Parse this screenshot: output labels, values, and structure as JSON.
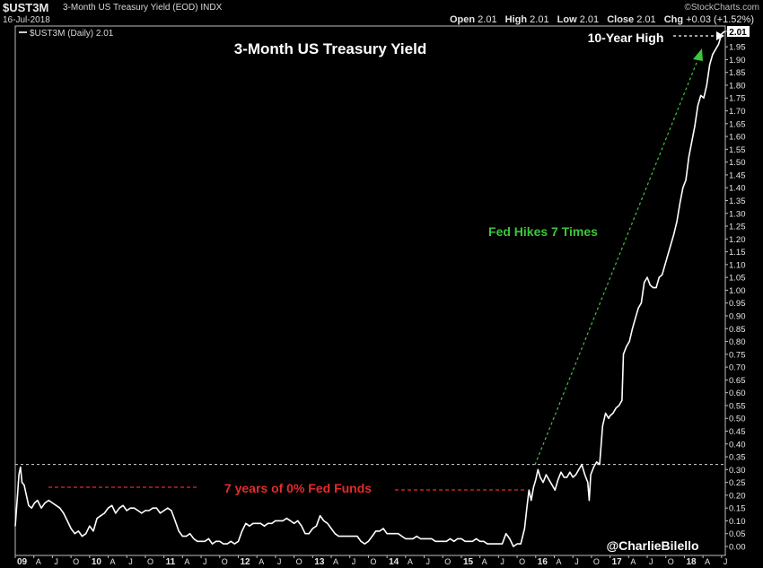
{
  "header": {
    "symbol": "$UST3M",
    "name": "3-Month US Treasury Yield (EOD)  INDX",
    "date": "16-Jul-2018",
    "brand": "©StockCharts.com",
    "ohlc": [
      {
        "key": "Open",
        "value": "2.01"
      },
      {
        "key": "High",
        "value": "2.01"
      },
      {
        "key": "Low",
        "value": "2.01"
      },
      {
        "key": "Close",
        "value": "2.01"
      },
      {
        "key": "Chg",
        "value": "+0.03 (+1.52%)"
      }
    ]
  },
  "legend_text": "$UST3M (Daily) 2.01",
  "colors": {
    "background": "#000000",
    "line": "#ffffff",
    "annotation_red": "#e52b2b",
    "annotation_green": "#3ec43e",
    "grid": "#cfcfcf"
  },
  "chart_data": {
    "type": "line",
    "title": "3-Month US Treasury Yield",
    "xlabel": "",
    "ylabel": "",
    "ylim": [
      0.0,
      2.02
    ],
    "yticks": [
      "2.01",
      "1.95",
      "1.90",
      "1.85",
      "1.80",
      "1.75",
      "1.70",
      "1.65",
      "1.60",
      "1.55",
      "1.50",
      "1.45",
      "1.40",
      "1.35",
      "1.30",
      "1.25",
      "1.20",
      "1.15",
      "1.10",
      "1.05",
      "1.00",
      "0.95",
      "0.90",
      "0.85",
      "0.80",
      "0.75",
      "0.70",
      "0.65",
      "0.60",
      "0.55",
      "0.50",
      "0.45",
      "0.40",
      "0.35",
      "0.30",
      "0.25",
      "0.20",
      "0.15",
      "0.10",
      "0.05",
      "0.00"
    ],
    "xticks": [
      {
        "label": "09",
        "year": 2009.0,
        "major": true
      },
      {
        "label": "A",
        "year": 2009.25,
        "major": false
      },
      {
        "label": "J",
        "year": 2009.5,
        "major": false
      },
      {
        "label": "O",
        "year": 2009.75,
        "major": false
      },
      {
        "label": "10",
        "year": 2010.0,
        "major": true
      },
      {
        "label": "A",
        "year": 2010.25,
        "major": false
      },
      {
        "label": "J",
        "year": 2010.5,
        "major": false
      },
      {
        "label": "O",
        "year": 2010.75,
        "major": false
      },
      {
        "label": "11",
        "year": 2011.0,
        "major": true
      },
      {
        "label": "A",
        "year": 2011.25,
        "major": false
      },
      {
        "label": "J",
        "year": 2011.5,
        "major": false
      },
      {
        "label": "O",
        "year": 2011.75,
        "major": false
      },
      {
        "label": "12",
        "year": 2012.0,
        "major": true
      },
      {
        "label": "A",
        "year": 2012.25,
        "major": false
      },
      {
        "label": "J",
        "year": 2012.5,
        "major": false
      },
      {
        "label": "O",
        "year": 2012.75,
        "major": false
      },
      {
        "label": "13",
        "year": 2013.0,
        "major": true
      },
      {
        "label": "A",
        "year": 2013.25,
        "major": false
      },
      {
        "label": "J",
        "year": 2013.5,
        "major": false
      },
      {
        "label": "O",
        "year": 2013.75,
        "major": false
      },
      {
        "label": "14",
        "year": 2014.0,
        "major": true
      },
      {
        "label": "A",
        "year": 2014.25,
        "major": false
      },
      {
        "label": "J",
        "year": 2014.5,
        "major": false
      },
      {
        "label": "O",
        "year": 2014.75,
        "major": false
      },
      {
        "label": "15",
        "year": 2015.0,
        "major": true
      },
      {
        "label": "A",
        "year": 2015.25,
        "major": false
      },
      {
        "label": "J",
        "year": 2015.5,
        "major": false
      },
      {
        "label": "O",
        "year": 2015.75,
        "major": false
      },
      {
        "label": "16",
        "year": 2016.0,
        "major": true
      },
      {
        "label": "A",
        "year": 2016.25,
        "major": false
      },
      {
        "label": "J",
        "year": 2016.5,
        "major": false
      },
      {
        "label": "O",
        "year": 2016.75,
        "major": false
      },
      {
        "label": "17",
        "year": 2017.0,
        "major": true
      },
      {
        "label": "A",
        "year": 2017.25,
        "major": false
      },
      {
        "label": "J",
        "year": 2017.5,
        "major": false
      },
      {
        "label": "O",
        "year": 2017.75,
        "major": false
      },
      {
        "label": "18",
        "year": 2018.0,
        "major": true
      },
      {
        "label": "A",
        "year": 2018.25,
        "major": false
      },
      {
        "label": "J",
        "year": 2018.5,
        "major": false
      }
    ],
    "xlim": [
      2009.0,
      2018.55
    ],
    "series": [
      {
        "points": [
          [
            2009.0,
            0.08
          ],
          [
            2009.03,
            0.2
          ],
          [
            2009.05,
            0.28
          ],
          [
            2009.07,
            0.31
          ],
          [
            2009.09,
            0.25
          ],
          [
            2009.12,
            0.24
          ],
          [
            2009.15,
            0.2
          ],
          [
            2009.18,
            0.16
          ],
          [
            2009.22,
            0.15
          ],
          [
            2009.26,
            0.17
          ],
          [
            2009.3,
            0.18
          ],
          [
            2009.35,
            0.15
          ],
          [
            2009.4,
            0.17
          ],
          [
            2009.45,
            0.18
          ],
          [
            2009.5,
            0.17
          ],
          [
            2009.55,
            0.16
          ],
          [
            2009.6,
            0.15
          ],
          [
            2009.65,
            0.13
          ],
          [
            2009.7,
            0.1
          ],
          [
            2009.75,
            0.07
          ],
          [
            2009.8,
            0.05
          ],
          [
            2009.85,
            0.06
          ],
          [
            2009.9,
            0.04
          ],
          [
            2009.95,
            0.05
          ],
          [
            2010.0,
            0.08
          ],
          [
            2010.05,
            0.06
          ],
          [
            2010.1,
            0.11
          ],
          [
            2010.15,
            0.12
          ],
          [
            2010.2,
            0.13
          ],
          [
            2010.25,
            0.15
          ],
          [
            2010.3,
            0.16
          ],
          [
            2010.35,
            0.13
          ],
          [
            2010.4,
            0.15
          ],
          [
            2010.45,
            0.16
          ],
          [
            2010.5,
            0.14
          ],
          [
            2010.55,
            0.15
          ],
          [
            2010.6,
            0.15
          ],
          [
            2010.65,
            0.14
          ],
          [
            2010.7,
            0.13
          ],
          [
            2010.75,
            0.14
          ],
          [
            2010.8,
            0.14
          ],
          [
            2010.85,
            0.15
          ],
          [
            2010.9,
            0.15
          ],
          [
            2010.95,
            0.13
          ],
          [
            2011.0,
            0.14
          ],
          [
            2011.05,
            0.15
          ],
          [
            2011.1,
            0.14
          ],
          [
            2011.15,
            0.1
          ],
          [
            2011.2,
            0.06
          ],
          [
            2011.25,
            0.04
          ],
          [
            2011.3,
            0.04
          ],
          [
            2011.35,
            0.05
          ],
          [
            2011.4,
            0.03
          ],
          [
            2011.45,
            0.02
          ],
          [
            2011.5,
            0.02
          ],
          [
            2011.55,
            0.02
          ],
          [
            2011.6,
            0.03
          ],
          [
            2011.65,
            0.01
          ],
          [
            2011.7,
            0.02
          ],
          [
            2011.75,
            0.02
          ],
          [
            2011.8,
            0.01
          ],
          [
            2011.85,
            0.01
          ],
          [
            2011.9,
            0.02
          ],
          [
            2011.95,
            0.01
          ],
          [
            2012.0,
            0.02
          ],
          [
            2012.05,
            0.06
          ],
          [
            2012.1,
            0.09
          ],
          [
            2012.15,
            0.08
          ],
          [
            2012.2,
            0.09
          ],
          [
            2012.25,
            0.09
          ],
          [
            2012.3,
            0.09
          ],
          [
            2012.35,
            0.08
          ],
          [
            2012.4,
            0.09
          ],
          [
            2012.45,
            0.09
          ],
          [
            2012.5,
            0.1
          ],
          [
            2012.55,
            0.1
          ],
          [
            2012.6,
            0.1
          ],
          [
            2012.65,
            0.11
          ],
          [
            2012.7,
            0.1
          ],
          [
            2012.75,
            0.09
          ],
          [
            2012.8,
            0.1
          ],
          [
            2012.85,
            0.08
          ],
          [
            2012.9,
            0.05
          ],
          [
            2012.95,
            0.05
          ],
          [
            2013.0,
            0.07
          ],
          [
            2013.05,
            0.08
          ],
          [
            2013.1,
            0.12
          ],
          [
            2013.15,
            0.1
          ],
          [
            2013.2,
            0.09
          ],
          [
            2013.25,
            0.07
          ],
          [
            2013.3,
            0.05
          ],
          [
            2013.35,
            0.04
          ],
          [
            2013.4,
            0.04
          ],
          [
            2013.45,
            0.04
          ],
          [
            2013.5,
            0.04
          ],
          [
            2013.55,
            0.04
          ],
          [
            2013.6,
            0.04
          ],
          [
            2013.65,
            0.02
          ],
          [
            2013.7,
            0.01
          ],
          [
            2013.75,
            0.02
          ],
          [
            2013.8,
            0.04
          ],
          [
            2013.85,
            0.06
          ],
          [
            2013.9,
            0.06
          ],
          [
            2013.95,
            0.07
          ],
          [
            2014.0,
            0.05
          ],
          [
            2014.05,
            0.05
          ],
          [
            2014.1,
            0.05
          ],
          [
            2014.15,
            0.05
          ],
          [
            2014.2,
            0.04
          ],
          [
            2014.25,
            0.03
          ],
          [
            2014.3,
            0.03
          ],
          [
            2014.35,
            0.03
          ],
          [
            2014.4,
            0.04
          ],
          [
            2014.45,
            0.03
          ],
          [
            2014.5,
            0.03
          ],
          [
            2014.55,
            0.03
          ],
          [
            2014.6,
            0.03
          ],
          [
            2014.65,
            0.02
          ],
          [
            2014.7,
            0.02
          ],
          [
            2014.75,
            0.02
          ],
          [
            2014.8,
            0.02
          ],
          [
            2014.85,
            0.03
          ],
          [
            2014.9,
            0.02
          ],
          [
            2014.95,
            0.03
          ],
          [
            2015.0,
            0.03
          ],
          [
            2015.05,
            0.02
          ],
          [
            2015.1,
            0.02
          ],
          [
            2015.15,
            0.02
          ],
          [
            2015.2,
            0.03
          ],
          [
            2015.25,
            0.02
          ],
          [
            2015.3,
            0.02
          ],
          [
            2015.35,
            0.01
          ],
          [
            2015.4,
            0.01
          ],
          [
            2015.45,
            0.01
          ],
          [
            2015.5,
            0.01
          ],
          [
            2015.55,
            0.01
          ],
          [
            2015.6,
            0.05
          ],
          [
            2015.65,
            0.03
          ],
          [
            2015.7,
            0.0
          ],
          [
            2015.75,
            0.01
          ],
          [
            2015.8,
            0.01
          ],
          [
            2015.85,
            0.07
          ],
          [
            2015.88,
            0.15
          ],
          [
            2015.91,
            0.22
          ],
          [
            2015.94,
            0.18
          ],
          [
            2015.97,
            0.23
          ],
          [
            2016.0,
            0.26
          ],
          [
            2016.03,
            0.3
          ],
          [
            2016.06,
            0.27
          ],
          [
            2016.1,
            0.25
          ],
          [
            2016.14,
            0.28
          ],
          [
            2016.18,
            0.26
          ],
          [
            2016.22,
            0.24
          ],
          [
            2016.26,
            0.22
          ],
          [
            2016.3,
            0.26
          ],
          [
            2016.34,
            0.29
          ],
          [
            2016.38,
            0.27
          ],
          [
            2016.42,
            0.27
          ],
          [
            2016.46,
            0.29
          ],
          [
            2016.5,
            0.27
          ],
          [
            2016.54,
            0.28
          ],
          [
            2016.58,
            0.3
          ],
          [
            2016.62,
            0.32
          ],
          [
            2016.66,
            0.28
          ],
          [
            2016.7,
            0.25
          ],
          [
            2016.72,
            0.18
          ],
          [
            2016.74,
            0.28
          ],
          [
            2016.78,
            0.31
          ],
          [
            2016.82,
            0.33
          ],
          [
            2016.86,
            0.32
          ],
          [
            2016.9,
            0.47
          ],
          [
            2016.94,
            0.52
          ],
          [
            2016.98,
            0.5
          ],
          [
            2017.0,
            0.51
          ],
          [
            2017.04,
            0.52
          ],
          [
            2017.08,
            0.54
          ],
          [
            2017.12,
            0.55
          ],
          [
            2017.16,
            0.57
          ],
          [
            2017.18,
            0.75
          ],
          [
            2017.22,
            0.78
          ],
          [
            2017.26,
            0.8
          ],
          [
            2017.3,
            0.85
          ],
          [
            2017.34,
            0.89
          ],
          [
            2017.38,
            0.93
          ],
          [
            2017.42,
            0.95
          ],
          [
            2017.46,
            1.03
          ],
          [
            2017.5,
            1.05
          ],
          [
            2017.54,
            1.02
          ],
          [
            2017.58,
            1.01
          ],
          [
            2017.62,
            1.01
          ],
          [
            2017.66,
            1.05
          ],
          [
            2017.7,
            1.06
          ],
          [
            2017.74,
            1.1
          ],
          [
            2017.78,
            1.14
          ],
          [
            2017.82,
            1.18
          ],
          [
            2017.86,
            1.22
          ],
          [
            2017.9,
            1.27
          ],
          [
            2017.94,
            1.34
          ],
          [
            2017.98,
            1.4
          ],
          [
            2018.02,
            1.43
          ],
          [
            2018.06,
            1.52
          ],
          [
            2018.1,
            1.58
          ],
          [
            2018.14,
            1.64
          ],
          [
            2018.18,
            1.72
          ],
          [
            2018.22,
            1.76
          ],
          [
            2018.26,
            1.75
          ],
          [
            2018.3,
            1.8
          ],
          [
            2018.34,
            1.88
          ],
          [
            2018.38,
            1.92
          ],
          [
            2018.42,
            1.94
          ],
          [
            2018.46,
            1.96
          ],
          [
            2018.5,
            2.0
          ],
          [
            2018.54,
            2.01
          ]
        ]
      }
    ],
    "annotations": {
      "zero_fed_funds": "7 years of 0% Fed Funds",
      "fed_hikes": "Fed Hikes 7 Times",
      "ten_year_high": "10-Year High",
      "reference_level": 0.32,
      "last_value": "2.01",
      "credit": "@CharlieBilello"
    }
  }
}
